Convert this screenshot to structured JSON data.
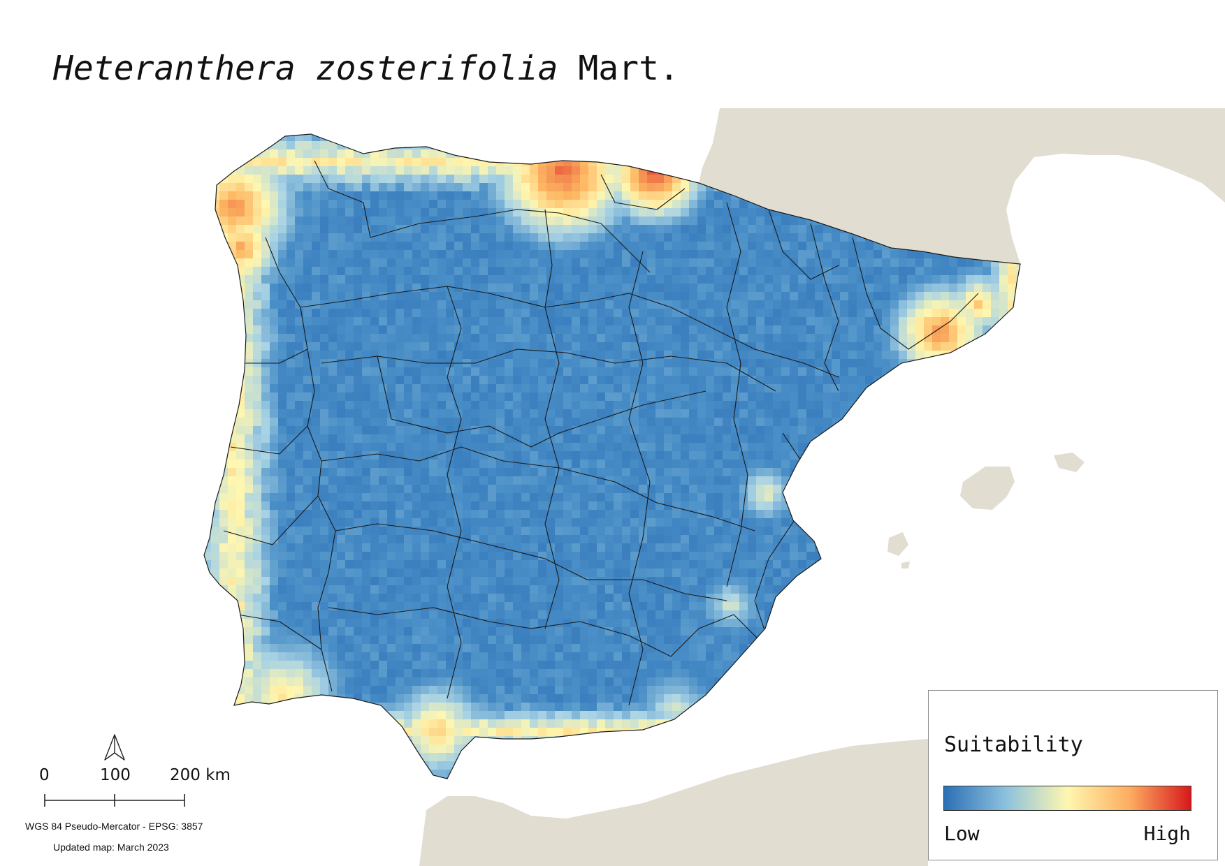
{
  "title": {
    "species": "Heteranthera zosterifolia",
    "author": "Mart."
  },
  "map": {
    "land_color": "#e1ddd1",
    "sea_color": "#ffffff",
    "border_color": "#1a1a1a",
    "color_scale": [
      "#2c6fb6",
      "#4a8fc7",
      "#a9d3e4",
      "#fff7b0",
      "#fdb863",
      "#f07b4a",
      "#d7191c"
    ]
  },
  "legend": {
    "title": "Suitability",
    "low_label": "Low",
    "high_label": "High"
  },
  "scale_bar": {
    "labels": [
      "0",
      "100",
      "200 km"
    ]
  },
  "north_arrow": {
    "icon": "north-arrow-icon"
  },
  "footer": {
    "crs": "WGS 84 Pseudo-Mercator  - EPSG: 3857",
    "updated": "Updated map: March 2023"
  }
}
